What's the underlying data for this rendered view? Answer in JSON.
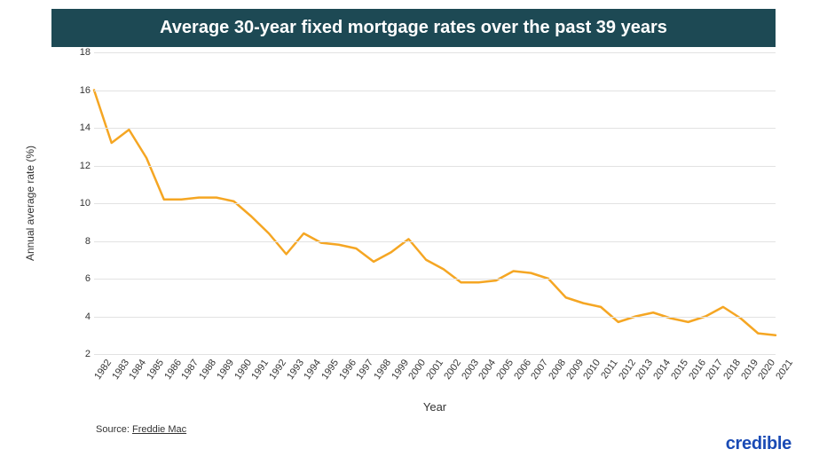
{
  "title": "Average 30-year fixed mortgage rates over the past 39 years",
  "title_bg": "#1d4954",
  "title_color": "#ffffff",
  "title_fontsize": 20,
  "chart": {
    "type": "line",
    "ylabel": "Annual average rate (%)",
    "ylabel_fontsize": 12,
    "xlabel": "Year",
    "xlabel_fontsize": 13,
    "ylim": [
      2,
      18
    ],
    "ytick_step": 2,
    "yticks": [
      2,
      4,
      6,
      8,
      10,
      12,
      14,
      16,
      18
    ],
    "tick_fontsize": 11,
    "grid_color": "#e2e2e2",
    "background_color": "#ffffff",
    "line_color": "#f5a623",
    "line_width": 2.5,
    "years": [
      1982,
      1983,
      1984,
      1985,
      1986,
      1987,
      1988,
      1989,
      1990,
      1991,
      1992,
      1993,
      1994,
      1995,
      1996,
      1997,
      1998,
      1999,
      2000,
      2001,
      2002,
      2003,
      2004,
      2005,
      2006,
      2007,
      2008,
      2009,
      2010,
      2011,
      2012,
      2013,
      2014,
      2015,
      2016,
      2017,
      2018,
      2019,
      2020,
      2021
    ],
    "values": [
      16.0,
      13.2,
      13.9,
      12.4,
      10.2,
      10.2,
      10.3,
      10.3,
      10.1,
      9.3,
      8.4,
      7.3,
      8.4,
      7.9,
      7.8,
      7.6,
      6.9,
      7.4,
      8.1,
      7.0,
      6.5,
      5.8,
      5.8,
      5.9,
      6.4,
      6.3,
      6.0,
      5.0,
      4.7,
      4.5,
      3.7,
      4.0,
      4.2,
      3.9,
      3.7,
      4.0,
      4.5,
      3.9,
      3.1,
      3.0
    ]
  },
  "source_prefix": "Source: ",
  "source_link_text": "Freddie Mac",
  "source_fontsize": 11,
  "brand": "credible",
  "brand_color": "#1a4bb5",
  "brand_fontsize": 20
}
